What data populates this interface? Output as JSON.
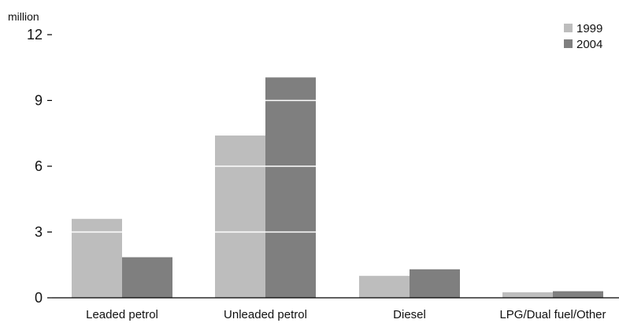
{
  "chart_data": {
    "type": "bar",
    "title": "",
    "unit_label": "million",
    "xlabel": "",
    "ylabel": "",
    "ylim": [
      0,
      12
    ],
    "yticks": [
      0,
      3,
      6,
      9,
      12
    ],
    "grid": "white gridlines drawn over bars",
    "legend_position": "top-right",
    "categories": [
      "Leaded petrol",
      "Unleaded petrol",
      "Diesel",
      "LPG/Dual fuel/Other"
    ],
    "series": [
      {
        "name": "1999",
        "color": "#bdbdbd",
        "values": [
          3.6,
          7.4,
          1.0,
          0.25
        ]
      },
      {
        "name": "2004",
        "color": "#7f7f7f",
        "values": [
          1.85,
          10.05,
          1.3,
          0.3
        ]
      }
    ]
  }
}
